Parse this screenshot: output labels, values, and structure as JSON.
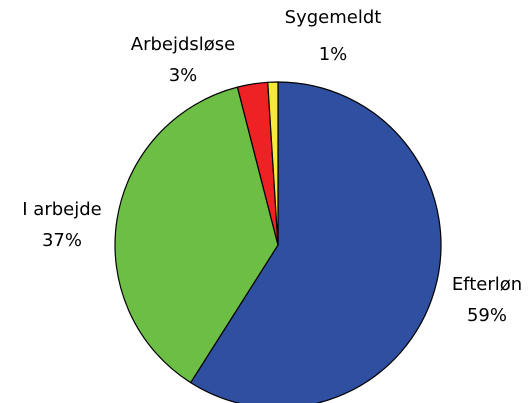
{
  "chart_data": {
    "type": "pie",
    "categories": [
      "Efterløn",
      "I arbejde",
      "Arbejdsløse",
      "Sygemeldt"
    ],
    "values": [
      59,
      37,
      3,
      1
    ],
    "value_labels": [
      "59%",
      "37%",
      "3%",
      "1%"
    ],
    "colors": [
      "#2f4fa0",
      "#6dbe45",
      "#ee2224",
      "#f5e93a"
    ]
  }
}
